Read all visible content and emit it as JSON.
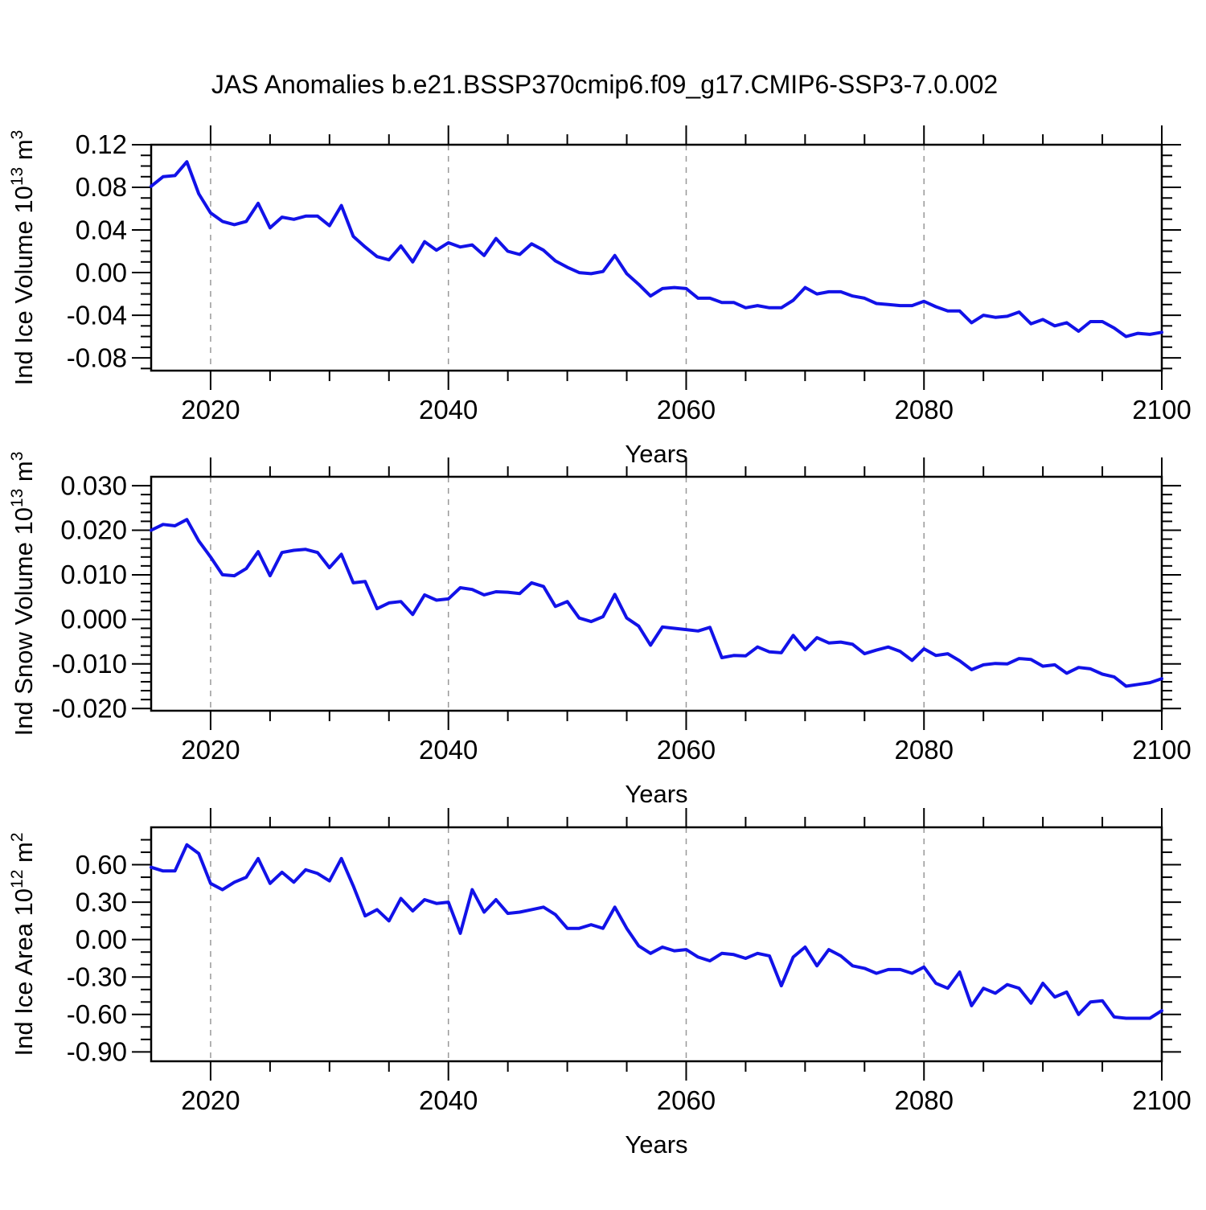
{
  "title": "JAS Anomalies b.e21.BSSP370cmip6.f09_g17.CMIP6-SSP3-7.0.002",
  "styles": {
    "line_color": "#1212e8",
    "axis_color": "#000000",
    "grid_color": "#999999",
    "background": "#ffffff"
  },
  "x_axis": {
    "label": "Years",
    "start": 2015,
    "end": 2100,
    "major_ticks": [
      {
        "year": 2020,
        "label": "2020"
      },
      {
        "year": 2040,
        "label": "2040"
      },
      {
        "year": 2060,
        "label": "2060"
      },
      {
        "year": 2080,
        "label": "2080"
      },
      {
        "year": 2100,
        "label": "2100"
      }
    ],
    "minor_step": 5,
    "grid_years": [
      2020,
      2040,
      2060,
      2080
    ],
    "years": [
      2015,
      2016,
      2017,
      2018,
      2019,
      2020,
      2021,
      2022,
      2023,
      2024,
      2025,
      2026,
      2027,
      2028,
      2029,
      2030,
      2031,
      2032,
      2033,
      2034,
      2035,
      2036,
      2037,
      2038,
      2039,
      2040,
      2041,
      2042,
      2043,
      2044,
      2045,
      2046,
      2047,
      2048,
      2049,
      2050,
      2051,
      2052,
      2053,
      2054,
      2055,
      2056,
      2057,
      2058,
      2059,
      2060,
      2061,
      2062,
      2063,
      2064,
      2065,
      2066,
      2067,
      2068,
      2069,
      2070,
      2071,
      2072,
      2073,
      2074,
      2075,
      2076,
      2077,
      2078,
      2079,
      2080,
      2081,
      2082,
      2083,
      2084,
      2085,
      2086,
      2087,
      2088,
      2089,
      2090,
      2091,
      2092,
      2093,
      2094,
      2095,
      2096,
      2097,
      2098,
      2099,
      2100
    ]
  },
  "chart_data": [
    {
      "type": "line",
      "name": "ind-ice-volume",
      "ylabel_parts": [
        {
          "t": "Ind Ice Volume 10"
        },
        {
          "t": "13",
          "sup": true
        },
        {
          "t": " m"
        },
        {
          "t": "3",
          "sup": true
        }
      ],
      "xlabel": "Years",
      "ylim": [
        -0.092,
        0.12
      ],
      "y_minor_step": 0.01,
      "y_ticks": [
        {
          "v": 0.12,
          "label": "0.12"
        },
        {
          "v": 0.08,
          "label": "0.08"
        },
        {
          "v": 0.04,
          "label": "0.04"
        },
        {
          "v": 0.0,
          "label": "0.00"
        },
        {
          "v": -0.04,
          "label": "-0.04"
        },
        {
          "v": -0.08,
          "label": "-0.08"
        }
      ],
      "values": [
        0.081,
        0.09,
        0.091,
        0.104,
        0.074,
        0.056,
        0.048,
        0.045,
        0.048,
        0.065,
        0.042,
        0.052,
        0.05,
        0.053,
        0.053,
        0.044,
        0.063,
        0.034,
        0.024,
        0.015,
        0.012,
        0.025,
        0.01,
        0.029,
        0.021,
        0.028,
        0.024,
        0.026,
        0.016,
        0.032,
        0.02,
        0.017,
        0.027,
        0.021,
        0.011,
        0.005,
        0.0,
        -0.001,
        0.001,
        0.016,
        -0.001,
        -0.011,
        -0.022,
        -0.015,
        -0.014,
        -0.015,
        -0.024,
        -0.024,
        -0.028,
        -0.028,
        -0.033,
        -0.031,
        -0.033,
        -0.033,
        -0.026,
        -0.014,
        -0.02,
        -0.018,
        -0.018,
        -0.022,
        -0.024,
        -0.029,
        -0.03,
        -0.031,
        -0.031,
        -0.027,
        -0.032,
        -0.036,
        -0.036,
        -0.047,
        -0.04,
        -0.042,
        -0.041,
        -0.037,
        -0.048,
        -0.044,
        -0.05,
        -0.047,
        -0.055,
        -0.046,
        -0.046,
        -0.052,
        -0.06,
        -0.057,
        -0.058,
        -0.056
      ]
    },
    {
      "type": "line",
      "name": "ind-snow-volume",
      "ylabel_parts": [
        {
          "t": "Ind Snow Volume 10"
        },
        {
          "t": "13",
          "sup": true
        },
        {
          "t": " m"
        },
        {
          "t": "3",
          "sup": true
        }
      ],
      "xlabel": "Years",
      "ylim": [
        -0.0205,
        0.032
      ],
      "y_minor_step": 0.002,
      "y_ticks": [
        {
          "v": 0.03,
          "label": "0.030"
        },
        {
          "v": 0.02,
          "label": "0.020"
        },
        {
          "v": 0.01,
          "label": "0.010"
        },
        {
          "v": 0.0,
          "label": "0.000"
        },
        {
          "v": -0.01,
          "label": "-0.010"
        },
        {
          "v": -0.02,
          "label": "-0.020"
        }
      ],
      "values": [
        0.02,
        0.0213,
        0.021,
        0.0224,
        0.0176,
        0.014,
        0.01,
        0.0098,
        0.0114,
        0.0152,
        0.0098,
        0.015,
        0.0155,
        0.0157,
        0.015,
        0.0116,
        0.0146,
        0.0082,
        0.0085,
        0.0024,
        0.0037,
        0.004,
        0.0011,
        0.0055,
        0.0043,
        0.0046,
        0.0071,
        0.0067,
        0.0055,
        0.0062,
        0.0061,
        0.0058,
        0.0082,
        0.0074,
        0.0029,
        0.004,
        0.0003,
        -0.0005,
        0.0006,
        0.0056,
        0.0003,
        -0.0015,
        -0.0058,
        -0.0017,
        -0.002,
        -0.0023,
        -0.0026,
        -0.0018,
        -0.0086,
        -0.0081,
        -0.0082,
        -0.0062,
        -0.0073,
        -0.0075,
        -0.0036,
        -0.0068,
        -0.0041,
        -0.0053,
        -0.0051,
        -0.0056,
        -0.0077,
        -0.0069,
        -0.0062,
        -0.0072,
        -0.0092,
        -0.0066,
        -0.0081,
        -0.0077,
        -0.0093,
        -0.0113,
        -0.0102,
        -0.0099,
        -0.01,
        -0.0088,
        -0.009,
        -0.0105,
        -0.0102,
        -0.0121,
        -0.0108,
        -0.0111,
        -0.0123,
        -0.0129,
        -0.015,
        -0.0146,
        -0.0142,
        -0.0133
      ]
    },
    {
      "type": "line",
      "name": "ind-ice-area",
      "ylabel_parts": [
        {
          "t": "Ind Ice Area 10"
        },
        {
          "t": "12",
          "sup": true
        },
        {
          "t": " m"
        },
        {
          "t": "2",
          "sup": true
        }
      ],
      "xlabel": "Years",
      "ylim": [
        -0.975,
        0.9
      ],
      "y_minor_step": 0.1,
      "y_ticks": [
        {
          "v": 0.6,
          "label": "0.60"
        },
        {
          "v": 0.3,
          "label": "0.30"
        },
        {
          "v": 0.0,
          "label": "0.00"
        },
        {
          "v": -0.3,
          "label": "-0.30"
        },
        {
          "v": -0.6,
          "label": "-0.60"
        },
        {
          "v": -0.9,
          "label": "-0.90"
        }
      ],
      "values": [
        0.58,
        0.55,
        0.55,
        0.76,
        0.69,
        0.45,
        0.4,
        0.46,
        0.5,
        0.65,
        0.45,
        0.54,
        0.46,
        0.56,
        0.53,
        0.47,
        0.65,
        0.43,
        0.19,
        0.24,
        0.15,
        0.33,
        0.23,
        0.32,
        0.29,
        0.3,
        0.05,
        0.4,
        0.22,
        0.32,
        0.21,
        0.22,
        0.24,
        0.26,
        0.2,
        0.09,
        0.09,
        0.12,
        0.09,
        0.26,
        0.09,
        -0.05,
        -0.11,
        -0.06,
        -0.09,
        -0.08,
        -0.14,
        -0.17,
        -0.11,
        -0.12,
        -0.15,
        -0.11,
        -0.13,
        -0.37,
        -0.14,
        -0.06,
        -0.21,
        -0.08,
        -0.13,
        -0.21,
        -0.23,
        -0.27,
        -0.24,
        -0.24,
        -0.27,
        -0.22,
        -0.35,
        -0.39,
        -0.26,
        -0.53,
        -0.39,
        -0.43,
        -0.36,
        -0.39,
        -0.51,
        -0.35,
        -0.46,
        -0.42,
        -0.6,
        -0.5,
        -0.49,
        -0.62,
        -0.63,
        -0.63,
        -0.63,
        -0.57
      ]
    }
  ]
}
